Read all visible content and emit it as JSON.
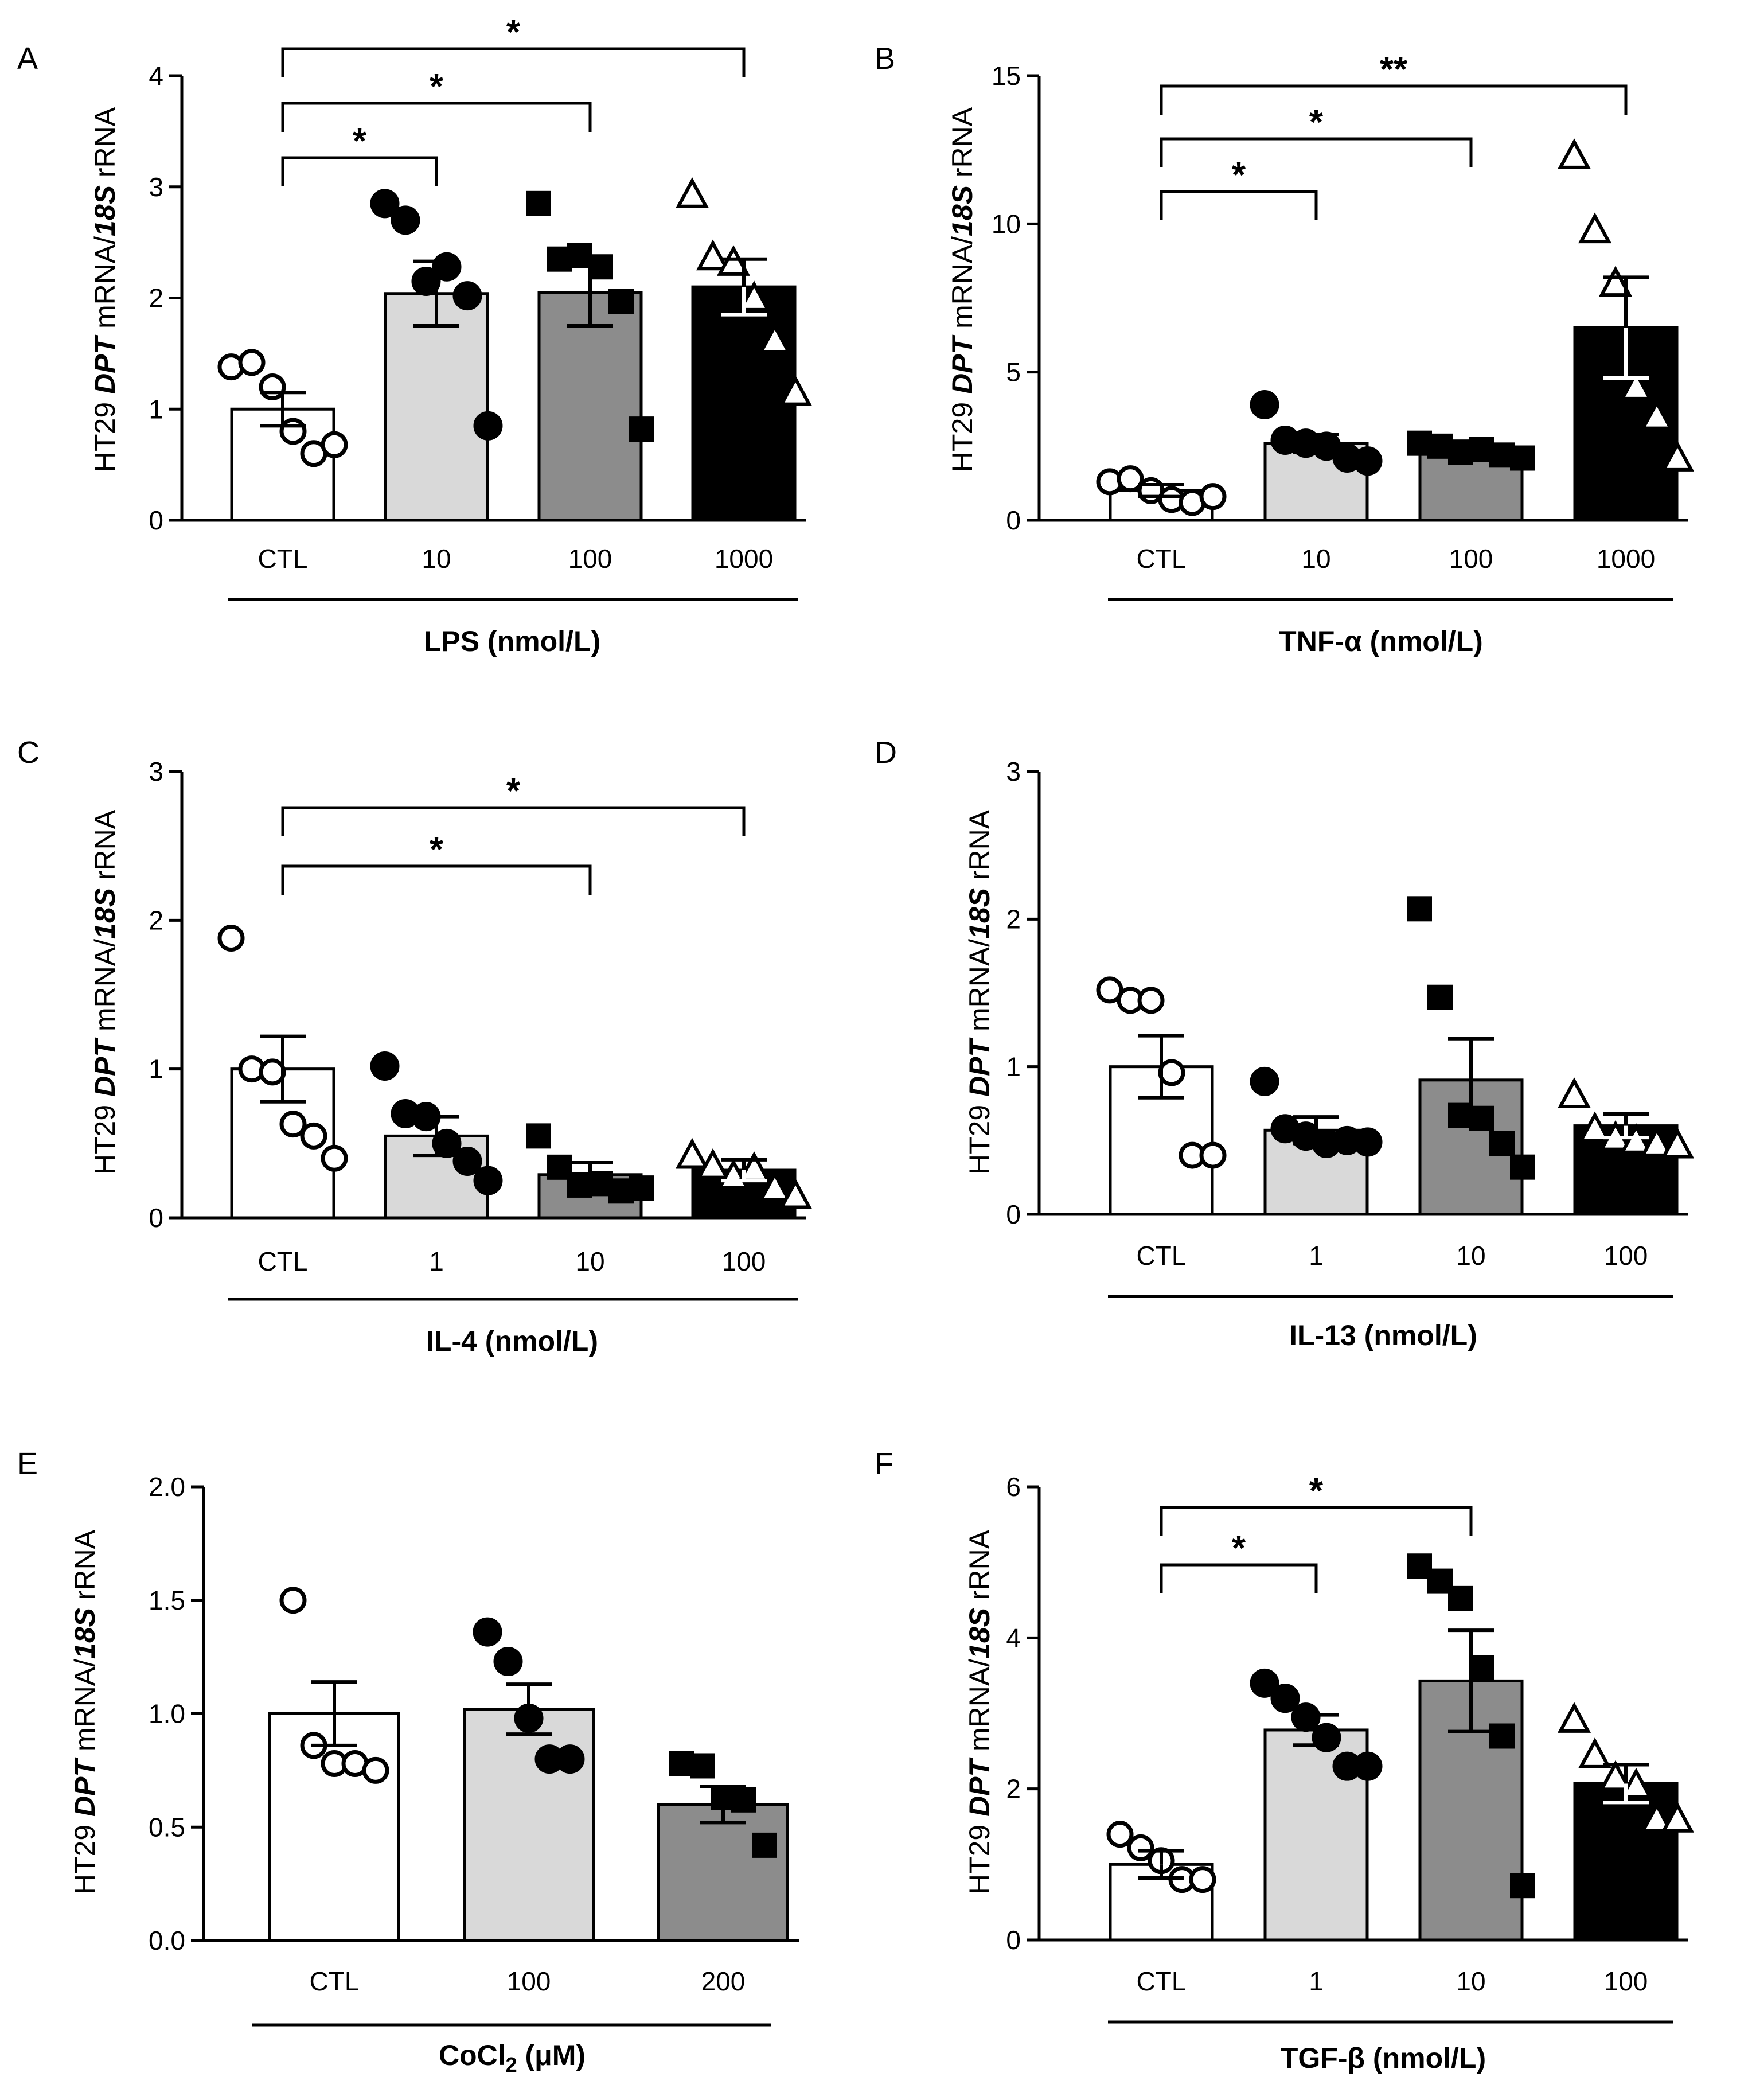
{
  "figure": {
    "ylabel": {
      "prefix": "HT29 ",
      "gene": "DPT",
      "middle": " mRNA/",
      "ref": "18S",
      "suffix": " rRNA"
    },
    "colors": [
      "#ffffff",
      "#d9d9d9",
      "#8c8c8c",
      "#000000"
    ]
  },
  "chart_data": [
    {
      "panel": "A",
      "type": "bar",
      "title": "",
      "xlabel": "LPS (nmol/L)",
      "categories": [
        "CTL",
        "10",
        "100",
        "1000"
      ],
      "values": [
        1.0,
        2.04,
        2.05,
        2.1
      ],
      "sem": [
        0.15,
        0.29,
        0.3,
        0.25
      ],
      "markers": [
        "circle-open",
        "circle-filled",
        "square-filled",
        "triangle-open"
      ],
      "points": [
        [
          1.38,
          1.42,
          1.2,
          0.8,
          0.6,
          0.68
        ],
        [
          2.85,
          2.7,
          2.15,
          2.28,
          2.02,
          0.85
        ],
        [
          2.85,
          2.35,
          2.38,
          2.28,
          1.97,
          0.82
        ],
        [
          2.93,
          2.37,
          2.32,
          2.0,
          1.62,
          1.15
        ]
      ],
      "ylim": [
        0,
        4
      ],
      "yticks": [
        "0",
        "1",
        "2",
        "3",
        "4"
      ],
      "significance": [
        {
          "from": 0,
          "to": 1,
          "label": "*"
        },
        {
          "from": 0,
          "to": 2,
          "label": "*"
        },
        {
          "from": 0,
          "to": 3,
          "label": "*"
        }
      ]
    },
    {
      "panel": "B",
      "type": "bar",
      "title": "",
      "xlabel": "TNF-α (nmol/L)",
      "categories": [
        "CTL",
        "10",
        "100",
        "1000"
      ],
      "values": [
        1.0,
        2.6,
        2.4,
        6.5
      ],
      "sem": [
        0.2,
        0.3,
        0.2,
        1.7
      ],
      "markers": [
        "circle-open",
        "circle-filled",
        "square-filled",
        "triangle-open"
      ],
      "points": [
        [
          1.3,
          1.4,
          1.0,
          0.7,
          0.6,
          0.8
        ],
        [
          3.9,
          2.7,
          2.6,
          2.5,
          2.1,
          2.0
        ],
        [
          2.6,
          2.5,
          2.3,
          2.4,
          2.2,
          2.1
        ],
        [
          12.3,
          9.8,
          8.0,
          4.5,
          3.5,
          2.1
        ]
      ],
      "ylim": [
        0,
        15
      ],
      "yticks": [
        "0",
        "5",
        "10",
        "15"
      ],
      "significance": [
        {
          "from": 0,
          "to": 1,
          "label": "*"
        },
        {
          "from": 0,
          "to": 2,
          "label": "*"
        },
        {
          "from": 0,
          "to": 3,
          "label": "**"
        }
      ]
    },
    {
      "panel": "C",
      "type": "bar",
      "title": "",
      "xlabel": "IL-4 (nmol/L)",
      "categories": [
        "CTL",
        "1",
        "10",
        "100"
      ],
      "values": [
        1.0,
        0.55,
        0.29,
        0.32
      ],
      "sem": [
        0.22,
        0.13,
        0.08,
        0.07
      ],
      "markers": [
        "circle-open",
        "circle-filled",
        "square-filled",
        "triangle-open"
      ],
      "points": [
        [
          1.88,
          1.0,
          0.98,
          0.63,
          0.55,
          0.4
        ],
        [
          1.02,
          0.7,
          0.68,
          0.5,
          0.38,
          0.25
        ],
        [
          0.55,
          0.34,
          0.22,
          0.23,
          0.18,
          0.2
        ],
        [
          0.42,
          0.35,
          0.28,
          0.33,
          0.2,
          0.15
        ]
      ],
      "ylim": [
        0,
        3
      ],
      "yticks": [
        "0",
        "1",
        "2",
        "3"
      ],
      "significance": [
        {
          "from": 0,
          "to": 2,
          "label": "*"
        },
        {
          "from": 0,
          "to": 3,
          "label": "*"
        }
      ]
    },
    {
      "panel": "D",
      "type": "bar",
      "title": "",
      "xlabel": "IL-13 (nmol/L)",
      "categories": [
        "CTL",
        "1",
        "10",
        "100"
      ],
      "values": [
        1.0,
        0.57,
        0.91,
        0.6
      ],
      "sem": [
        0.21,
        0.09,
        0.28,
        0.08
      ],
      "markers": [
        "circle-open",
        "circle-filled",
        "square-filled",
        "triangle-open"
      ],
      "points": [
        [
          1.52,
          1.45,
          1.45,
          0.96,
          0.4,
          0.4
        ],
        [
          0.9,
          0.58,
          0.53,
          0.48,
          0.5,
          0.49
        ],
        [
          2.07,
          1.47,
          0.67,
          0.65,
          0.48,
          0.32
        ],
        [
          0.81,
          0.58,
          0.52,
          0.5,
          0.48,
          0.47
        ]
      ],
      "ylim": [
        0,
        3
      ],
      "yticks": [
        "0",
        "1",
        "2",
        "3"
      ],
      "significance": []
    },
    {
      "panel": "E",
      "type": "bar",
      "title": "",
      "xlabel_prefix": "CoCl",
      "xlabel_sub": "2",
      "xlabel_suffix": " (μM)",
      "categories": [
        "CTL",
        "100",
        "200"
      ],
      "values": [
        1.0,
        1.02,
        0.6
      ],
      "sem": [
        0.14,
        0.11,
        0.08
      ],
      "markers": [
        "circle-open",
        "circle-filled",
        "square-filled"
      ],
      "points": [
        [
          1.5,
          0.86,
          0.78,
          0.78,
          0.75
        ],
        [
          1.36,
          1.23,
          0.98,
          0.8,
          0.8
        ],
        [
          0.78,
          0.77,
          0.63,
          0.62,
          0.42
        ]
      ],
      "ylim": [
        0,
        2.0
      ],
      "yticks": [
        "0.0",
        "0.5",
        "1.0",
        "1.5",
        "2.0"
      ],
      "significance": []
    },
    {
      "panel": "F",
      "type": "bar",
      "title": "",
      "xlabel": "TGF-β (nmol/L)",
      "categories": [
        "CTL",
        "1",
        "10",
        "100"
      ],
      "values": [
        1.0,
        2.78,
        3.43,
        2.07
      ],
      "sem": [
        0.18,
        0.2,
        0.67,
        0.25
      ],
      "markers": [
        "circle-open",
        "circle-filled",
        "square-filled",
        "triangle-open"
      ],
      "points": [
        [
          1.4,
          1.22,
          1.05,
          0.8,
          0.8
        ],
        [
          3.4,
          3.2,
          2.95,
          2.68,
          2.3,
          2.3
        ],
        [
          4.95,
          4.75,
          4.52,
          3.6,
          2.7,
          0.72
        ],
        [
          2.92,
          2.45,
          2.15,
          2.05,
          1.6,
          1.6
        ]
      ],
      "ylim": [
        0,
        6
      ],
      "yticks": [
        "0",
        "2",
        "4",
        "6"
      ],
      "significance": [
        {
          "from": 0,
          "to": 1,
          "label": "*"
        },
        {
          "from": 0,
          "to": 2,
          "label": "*"
        }
      ]
    }
  ]
}
